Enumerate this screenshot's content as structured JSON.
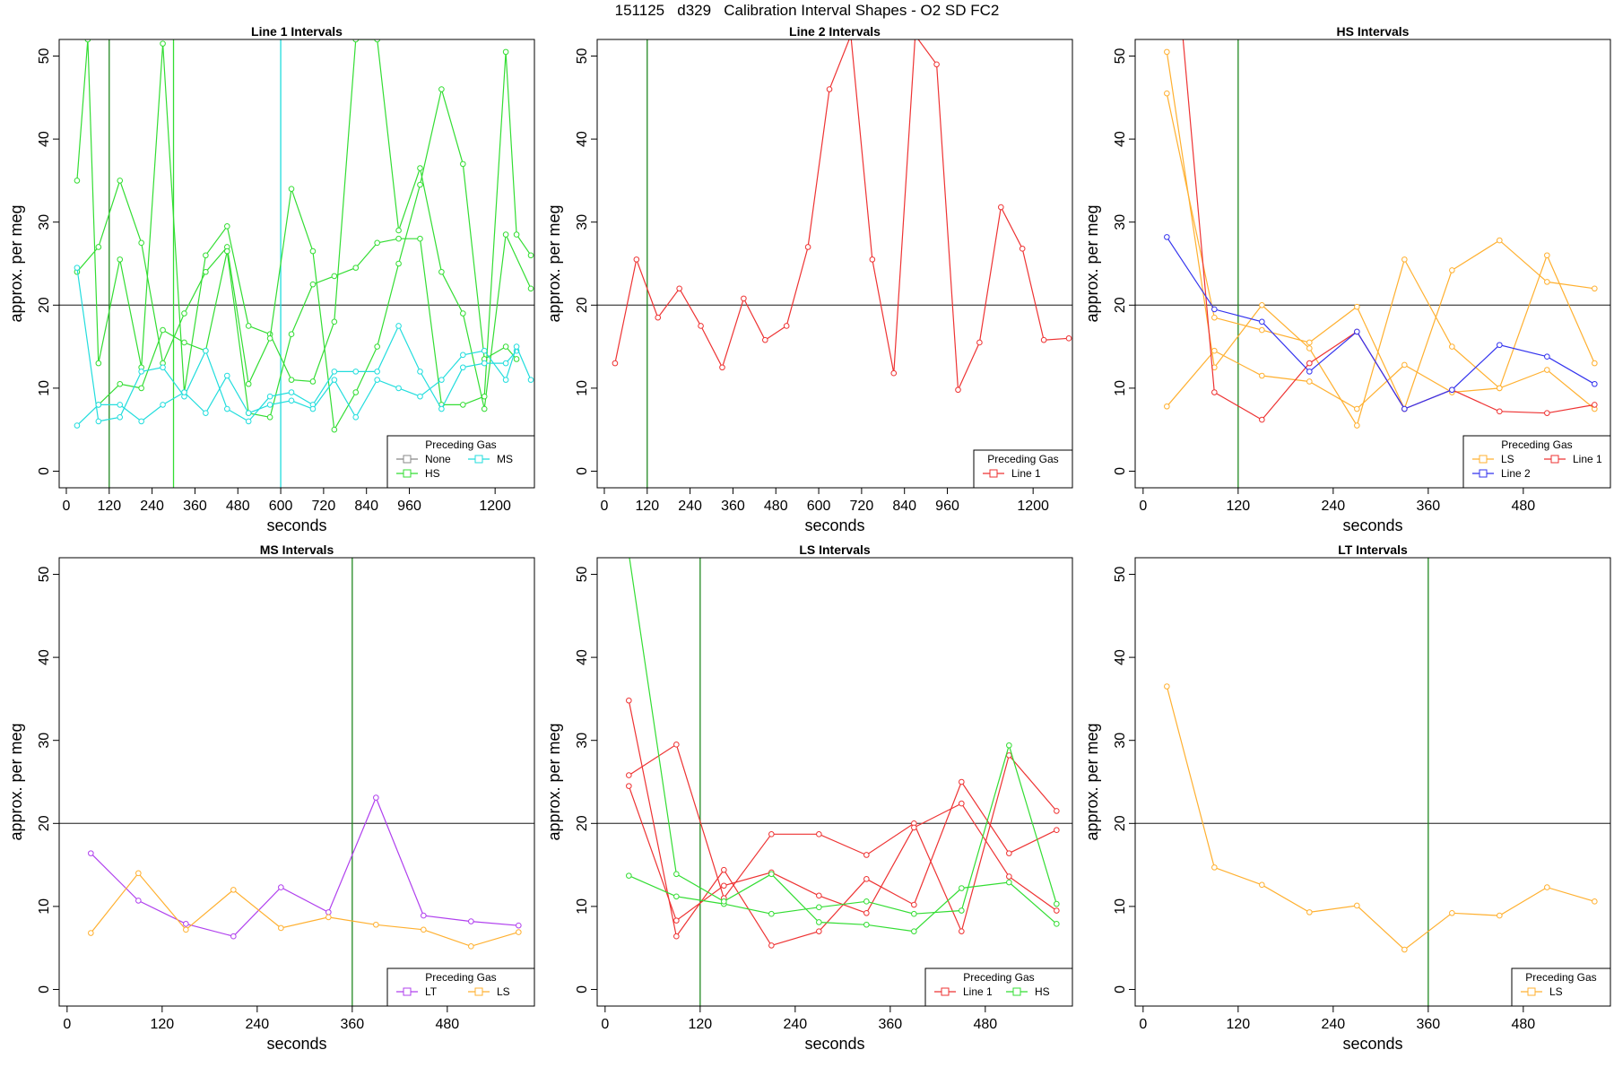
{
  "figure": {
    "title": "151125   d329   Calibration Interval Shapes - O2 SD FC2"
  },
  "colors": {
    "none": "#888888",
    "hs": "#33dd33",
    "ms": "#22dddd",
    "line1": "#ee3333",
    "line2": "#3333ee",
    "ls": "#ffb030",
    "lt": "#b040ee",
    "refline": "#555555",
    "vline": "#228822"
  },
  "chart_data": [
    {
      "type": "line",
      "title": "Line 1 Intervals",
      "xlabel": "seconds",
      "ylabel": "approx. per meg",
      "xlim": [
        -20,
        1310
      ],
      "ylim": [
        -2,
        52
      ],
      "hline": 20,
      "xticks": [
        0,
        120,
        240,
        360,
        480,
        600,
        720,
        840,
        960,
        1200
      ],
      "yticks": [
        0,
        10,
        20,
        30,
        40,
        50
      ],
      "vlines": [
        {
          "x": 120,
          "color": "vline"
        },
        {
          "x": 300,
          "color": "hs"
        },
        {
          "x": 600,
          "color": "ms"
        }
      ],
      "legend": {
        "title": "Preceding Gas",
        "position": "bottom-right",
        "cols": 2,
        "entries": [
          {
            "label": "None",
            "color": "none"
          },
          {
            "label": "MS",
            "color": "ms"
          },
          {
            "label": "HS",
            "color": "hs"
          }
        ]
      },
      "series": [
        {
          "name": "HS",
          "color": "hs",
          "x": [
            30,
            60,
            90,
            150,
            210,
            270,
            330,
            390,
            450,
            510,
            570,
            630,
            690,
            750,
            810,
            870,
            930,
            990,
            1050,
            1110,
            1170,
            1230,
            1300
          ],
          "values": [
            35,
            52,
            13,
            25.5,
            12.5,
            51.5,
            9.5,
            26,
            29.5,
            17.5,
            16.5,
            11,
            10.8,
            18,
            52,
            52,
            29,
            36.5,
            24,
            19,
            7.5,
            28.5,
            22
          ]
        },
        {
          "name": "HS",
          "color": "hs",
          "x": [
            30,
            90,
            150,
            210,
            270,
            330,
            390,
            450,
            510,
            570,
            630,
            690,
            750,
            810,
            870,
            930,
            990,
            1050,
            1110,
            1170,
            1230,
            1260
          ],
          "values": [
            24,
            27,
            35,
            27.5,
            13,
            19,
            24,
            27,
            10.5,
            16,
            34,
            26.5,
            5,
            9.5,
            15,
            25,
            34.5,
            46,
            37,
            13.5,
            15,
            13.5
          ]
        },
        {
          "name": "HS",
          "color": "hs",
          "x": [
            90,
            150,
            210,
            270,
            330,
            390,
            450,
            510,
            570,
            630,
            690,
            750,
            810,
            870,
            930,
            990,
            1050,
            1110,
            1170,
            1230,
            1260,
            1300
          ],
          "values": [
            8,
            10.5,
            10,
            17,
            15.5,
            14.5,
            26.5,
            7,
            6.5,
            16.5,
            22.5,
            23.5,
            24.5,
            27.5,
            28,
            28,
            8,
            8,
            9,
            50.5,
            28.5,
            26
          ]
        },
        {
          "name": "MS",
          "color": "ms",
          "x": [
            30,
            90,
            150,
            210,
            270,
            330,
            390,
            450,
            510,
            570,
            630,
            690,
            750,
            810,
            870,
            930,
            990,
            1050,
            1110,
            1170,
            1230,
            1260
          ],
          "values": [
            24.5,
            6,
            6.5,
            12,
            12.5,
            9,
            14.5,
            7.5,
            6,
            9,
            9.5,
            8,
            12,
            12,
            12,
            17.5,
            12,
            7.5,
            12.5,
            13,
            13,
            14.5
          ]
        },
        {
          "name": "MS",
          "color": "ms",
          "x": [
            30,
            90,
            150,
            210,
            270,
            330,
            390,
            450,
            510,
            570,
            630,
            690,
            750,
            810,
            870,
            930,
            990,
            1050,
            1110,
            1170,
            1230,
            1260,
            1300
          ],
          "values": [
            5.5,
            8,
            8,
            6,
            8,
            9.5,
            7,
            11.5,
            7,
            8,
            8.5,
            7.5,
            11,
            6.5,
            11,
            10,
            9,
            11,
            14,
            14.5,
            11,
            15,
            11
          ]
        }
      ]
    },
    {
      "type": "line",
      "title": "Line 2 Intervals",
      "xlabel": "seconds",
      "ylabel": "approx. per meg",
      "xlim": [
        -20,
        1310
      ],
      "ylim": [
        -2,
        52
      ],
      "hline": 20,
      "xticks": [
        0,
        120,
        240,
        360,
        480,
        600,
        720,
        840,
        960,
        1200
      ],
      "yticks": [
        0,
        10,
        20,
        30,
        40,
        50
      ],
      "vlines": [
        {
          "x": 120,
          "color": "vline"
        }
      ],
      "legend": {
        "title": "Preceding Gas",
        "position": "bottom-right",
        "cols": 1,
        "entries": [
          {
            "label": "Line 1",
            "color": "line1"
          }
        ]
      },
      "series": [
        {
          "name": "Line 1",
          "color": "line1",
          "x": [
            30,
            90,
            150,
            210,
            270,
            330,
            390,
            450,
            510,
            570,
            630,
            690,
            750,
            810,
            870,
            930,
            990,
            1050,
            1110,
            1170,
            1230,
            1300
          ],
          "values": [
            13,
            25.5,
            18.5,
            22,
            17.5,
            12.5,
            20.8,
            15.8,
            17.5,
            27,
            46,
            52.5,
            25.5,
            11.8,
            52.5,
            49,
            9.8,
            15.5,
            31.8,
            26.8,
            15.8,
            16
          ]
        }
      ]
    },
    {
      "type": "line",
      "title": "HS Intervals",
      "xlabel": "seconds",
      "ylabel": "approx. per meg",
      "xlim": [
        -10,
        590
      ],
      "ylim": [
        -2,
        52
      ],
      "hline": 20,
      "xticks": [
        0,
        120,
        240,
        360,
        480
      ],
      "yticks": [
        0,
        10,
        20,
        30,
        40,
        50
      ],
      "vlines": [
        {
          "x": 120,
          "color": "vline"
        }
      ],
      "legend": {
        "title": "Preceding Gas",
        "position": "bottom-right",
        "cols": 2,
        "entries": [
          {
            "label": "LS",
            "color": "ls"
          },
          {
            "label": "Line 1",
            "color": "line1"
          },
          {
            "label": "Line 2",
            "color": "line2"
          }
        ]
      },
      "series": [
        {
          "name": "LS",
          "color": "ls",
          "x": [
            30,
            90,
            150,
            210,
            270,
            330,
            390,
            450,
            510,
            570
          ],
          "values": [
            50.5,
            12.5,
            20,
            14.8,
            5.5,
            25.5,
            15,
            10,
            26,
            13
          ]
        },
        {
          "name": "LS",
          "color": "ls",
          "x": [
            30,
            90,
            150,
            210,
            270,
            330,
            390,
            450,
            510,
            570
          ],
          "values": [
            45.5,
            18.5,
            17,
            15.5,
            19.8,
            7.5,
            24.2,
            27.8,
            22.8,
            22
          ]
        },
        {
          "name": "LS",
          "color": "ls",
          "x": [
            30,
            90,
            150,
            210,
            270,
            330,
            390,
            450,
            510,
            570
          ],
          "values": [
            7.8,
            14.5,
            11.5,
            10.8,
            7.5,
            12.8,
            9.5,
            10,
            12.2,
            7.5
          ]
        },
        {
          "name": "Line 1",
          "color": "line1",
          "x": [
            50,
            90,
            150,
            210,
            270,
            330,
            390,
            450,
            510,
            570
          ],
          "values": [
            52.5,
            9.5,
            6.2,
            13,
            16.8,
            7.5,
            9.8,
            7.2,
            7,
            8
          ]
        },
        {
          "name": "Line 2",
          "color": "line2",
          "x": [
            30,
            90,
            150,
            210,
            270,
            330,
            390,
            450,
            510,
            570
          ],
          "values": [
            28.2,
            19.5,
            18,
            12,
            16.8,
            7.5,
            9.8,
            15.2,
            13.8,
            10.5
          ]
        }
      ]
    },
    {
      "type": "line",
      "title": "MS Intervals",
      "xlabel": "seconds",
      "ylabel": "approx. per meg",
      "xlim": [
        -10,
        590
      ],
      "ylim": [
        -2,
        52
      ],
      "hline": 20,
      "xticks": [
        0,
        120,
        240,
        360,
        480
      ],
      "yticks": [
        0,
        10,
        20,
        30,
        40,
        50
      ],
      "vlines": [
        {
          "x": 360,
          "color": "vline"
        }
      ],
      "legend": {
        "title": "Preceding Gas",
        "position": "bottom-right",
        "cols": 2,
        "entries": [
          {
            "label": "LT",
            "color": "lt"
          },
          {
            "label": "LS",
            "color": "ls"
          }
        ]
      },
      "series": [
        {
          "name": "LT",
          "color": "lt",
          "x": [
            30,
            90,
            150,
            210,
            270,
            330,
            390,
            450,
            510,
            570
          ],
          "values": [
            16.4,
            10.7,
            7.9,
            6.4,
            12.3,
            9.3,
            23.1,
            8.9,
            8.2,
            7.7
          ]
        },
        {
          "name": "LS",
          "color": "ls",
          "x": [
            30,
            90,
            150,
            210,
            270,
            330,
            390,
            450,
            510,
            570
          ],
          "values": [
            6.8,
            14,
            7.2,
            12,
            7.4,
            8.7,
            7.8,
            7.2,
            5.2,
            6.9
          ]
        }
      ]
    },
    {
      "type": "line",
      "title": "LS Intervals",
      "xlabel": "seconds",
      "ylabel": "approx. per meg",
      "xlim": [
        -10,
        590
      ],
      "ylim": [
        -2,
        52
      ],
      "hline": 20,
      "xticks": [
        0,
        120,
        240,
        360,
        480
      ],
      "yticks": [
        0,
        10,
        20,
        30,
        40,
        50
      ],
      "vlines": [
        {
          "x": 120,
          "color": "vline"
        }
      ],
      "legend": {
        "title": "Preceding Gas",
        "position": "bottom-right",
        "cols": 2,
        "entries": [
          {
            "label": "Line 1",
            "color": "line1"
          },
          {
            "label": "HS",
            "color": "hs"
          }
        ]
      },
      "series": [
        {
          "name": "Line 1",
          "color": "line1",
          "x": [
            30,
            90,
            150,
            210,
            270,
            330,
            390,
            450,
            510,
            570
          ],
          "values": [
            34.8,
            6.4,
            14.4,
            5.3,
            7,
            13.3,
            10.2,
            25,
            16.4,
            19.2
          ]
        },
        {
          "name": "Line 1",
          "color": "line1",
          "x": [
            30,
            90,
            150,
            210,
            270,
            330,
            390,
            450,
            510,
            570
          ],
          "values": [
            25.8,
            29.5,
            11,
            18.7,
            18.7,
            16.2,
            20,
            7,
            28.2,
            21.5
          ]
        },
        {
          "name": "Line 1",
          "color": "line1",
          "x": [
            30,
            90,
            150,
            210,
            270,
            330,
            390,
            450,
            510,
            570
          ],
          "values": [
            24.5,
            8.3,
            12.5,
            14.1,
            11.3,
            9.2,
            19.5,
            22.4,
            13.6,
            9.5
          ]
        },
        {
          "name": "HS",
          "color": "hs",
          "x": [
            30,
            90,
            150,
            210,
            270,
            330,
            390,
            450,
            510,
            570
          ],
          "values": [
            13.7,
            11.2,
            10.3,
            9.1,
            9.9,
            10.6,
            9.1,
            9.5,
            29.4,
            10.3
          ]
        },
        {
          "name": "HS",
          "color": "hs",
          "x": [
            30,
            90,
            150,
            210,
            270,
            330,
            390,
            450,
            510,
            570
          ],
          "values": [
            52.5,
            13.9,
            10.6,
            13.9,
            8.1,
            7.8,
            7,
            12.2,
            12.9,
            7.9
          ]
        }
      ]
    },
    {
      "type": "line",
      "title": "LT Intervals",
      "xlabel": "seconds",
      "ylabel": "approx. per meg",
      "xlim": [
        -10,
        590
      ],
      "ylim": [
        -2,
        52
      ],
      "hline": 20,
      "xticks": [
        0,
        120,
        240,
        360,
        480
      ],
      "yticks": [
        0,
        10,
        20,
        30,
        40,
        50
      ],
      "vlines": [
        {
          "x": 360,
          "color": "vline"
        }
      ],
      "legend": {
        "title": "Preceding Gas",
        "position": "bottom-right",
        "cols": 1,
        "entries": [
          {
            "label": "LS",
            "color": "ls"
          }
        ]
      },
      "series": [
        {
          "name": "LS",
          "color": "ls",
          "x": [
            30,
            90,
            150,
            210,
            270,
            330,
            390,
            450,
            510,
            570
          ],
          "values": [
            36.5,
            14.7,
            12.6,
            9.3,
            10.1,
            4.8,
            9.2,
            8.9,
            12.3,
            10.6
          ]
        }
      ]
    }
  ]
}
